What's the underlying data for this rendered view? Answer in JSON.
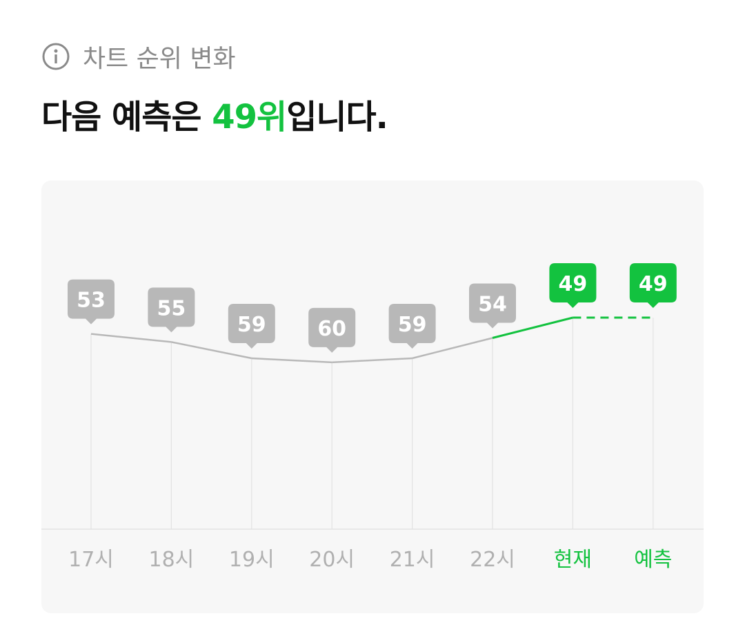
{
  "header": {
    "info_icon": "info-circle-icon",
    "subtitle": "차트 순위 변화"
  },
  "headline": {
    "prefix": "다음 예측은 ",
    "highlight": "49위",
    "suffix": "입니다."
  },
  "colors": {
    "accent": "#13c23f",
    "gray": "#b8b8b8",
    "axis_text": "#b0b0b0"
  },
  "chart_data": {
    "type": "line",
    "categories": [
      "17시",
      "18시",
      "19시",
      "20시",
      "21시",
      "22시",
      "현재",
      "예측"
    ],
    "values": [
      53,
      55,
      59,
      60,
      59,
      54,
      49,
      49
    ],
    "highlighted_categories": [
      "현재",
      "예측"
    ],
    "forecast_dashed": true,
    "y_inverted": true,
    "grid": "vertical"
  }
}
